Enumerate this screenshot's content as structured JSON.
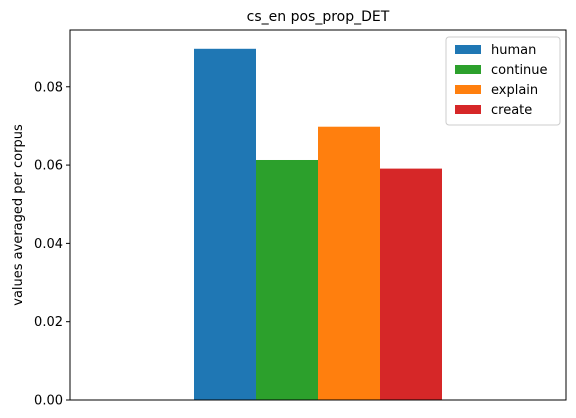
{
  "chart_data": {
    "type": "bar",
    "title": "cs_en pos_prop_DET",
    "xlabel": "",
    "ylabel": "values averaged per corpus",
    "ylim": [
      0,
      0.0945
    ],
    "yticks": [
      "0.00",
      "0.02",
      "0.04",
      "0.06",
      "0.08"
    ],
    "ytick_values": [
      0,
      0.02,
      0.04,
      0.06,
      0.08
    ],
    "legend_position": "top-right",
    "grid": false,
    "series": [
      {
        "name": "human",
        "value": 0.0897,
        "color": "#1f77b4"
      },
      {
        "name": "continue",
        "value": 0.0613,
        "color": "#2ca02c"
      },
      {
        "name": "explain",
        "value": 0.0698,
        "color": "#ff7f0e"
      },
      {
        "name": "create",
        "value": 0.0591,
        "color": "#d62728"
      }
    ]
  }
}
